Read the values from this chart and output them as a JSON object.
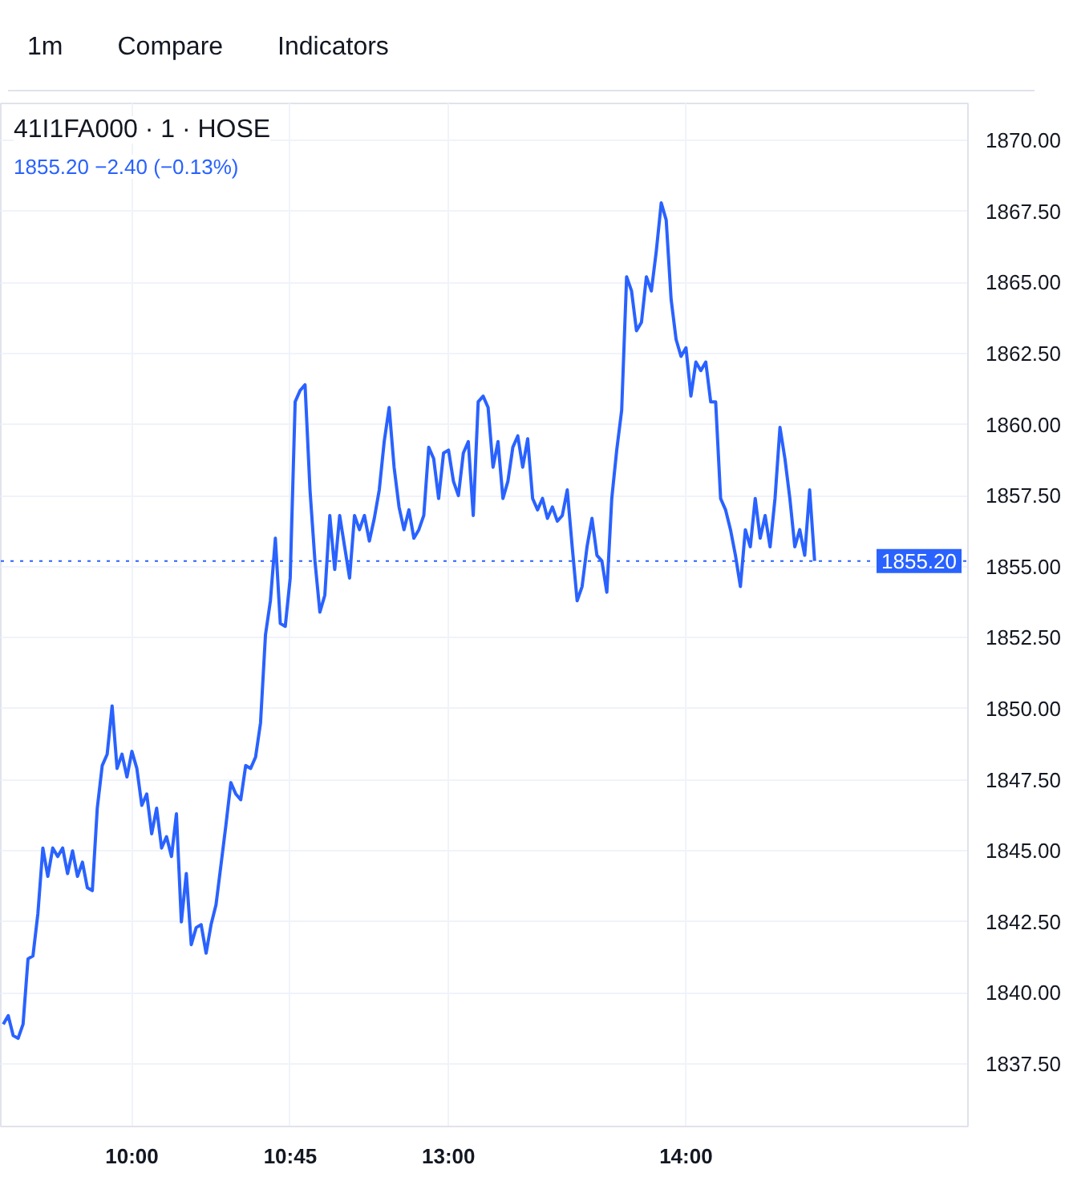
{
  "chart_data": {
    "type": "line",
    "title": "41I1FA000 · 1 · HOSE",
    "subtitle": "1855.20 −2.40 (−0.13%)",
    "annotations": [
      "1m",
      "Compare",
      "Indicators"
    ],
    "categories": [
      null,
      null,
      null,
      null,
      null,
      null,
      null,
      null,
      null,
      null,
      null,
      null,
      null,
      null,
      null,
      null,
      null,
      null,
      null,
      null,
      null,
      null,
      null,
      null,
      null,
      null,
      "10:00",
      null,
      null,
      null,
      null,
      null,
      null,
      null,
      null,
      null,
      null,
      null,
      null,
      null,
      null,
      null,
      null,
      null,
      null,
      null,
      null,
      null,
      null,
      null,
      null,
      null,
      null,
      null,
      null,
      null,
      null,
      null,
      "10:45",
      null,
      null,
      null,
      null,
      null,
      null,
      null,
      null,
      null,
      null,
      null,
      null,
      null,
      null,
      null,
      null,
      null,
      null,
      null,
      null,
      null,
      null,
      null,
      null,
      null,
      null,
      null,
      null,
      null,
      null,
      null,
      "13:00",
      null,
      null,
      null,
      null,
      null,
      null,
      null,
      null,
      null,
      null,
      null,
      null,
      null,
      null,
      null,
      null,
      null,
      null,
      null,
      null,
      null,
      null,
      null,
      null,
      null,
      null,
      null,
      null,
      null,
      null,
      null,
      null,
      null,
      null,
      null,
      null,
      null,
      null,
      null,
      null,
      null,
      null,
      null,
      null,
      null,
      null,
      null,
      "14:00",
      null,
      null,
      null,
      null,
      null,
      null,
      null,
      null,
      null,
      null,
      null,
      null,
      null,
      null,
      null,
      null,
      null,
      null,
      null,
      null,
      null,
      null,
      null,
      null,
      null,
      null
    ],
    "ylim": [
      1835.3,
      1871.3
    ],
    "yticks": [
      {
        "value": 1837.5,
        "label": "1837.50"
      },
      {
        "value": 1840,
        "label": "1840.00"
      },
      {
        "value": 1842.5,
        "label": "1842.50"
      },
      {
        "value": 1845,
        "label": "1845.00"
      },
      {
        "value": 1847.5,
        "label": "1847.50"
      },
      {
        "value": 1850,
        "label": "1850.00"
      },
      {
        "value": 1852.5,
        "label": "1852.50"
      },
      {
        "value": 1855,
        "label": "1855.00"
      },
      {
        "value": 1857.5,
        "label": "1857.50"
      },
      {
        "value": 1860,
        "label": "1860.00"
      },
      {
        "value": 1862.5,
        "label": "1862.50"
      },
      {
        "value": 1865,
        "label": "1865.00"
      },
      {
        "value": 1867.5,
        "label": "1867.50"
      },
      {
        "value": 1870,
        "label": "1870.00"
      }
    ],
    "grid": true,
    "line_style": "solid",
    "ref_lines": [
      {
        "axis": "y",
        "value": 1855.2,
        "label": "1855.20",
        "color": "#2962ff",
        "line_style": "dotted"
      }
    ],
    "series": [
      {
        "color": "#2962ff",
        "values": [
          1838.9,
          1839.2,
          1838.5,
          1838.4,
          1838.9,
          1841.2,
          1841.3,
          1842.8,
          1845.1,
          1844.1,
          1845.1,
          1844.8,
          1845.1,
          1844.2,
          1845.0,
          1844.1,
          1844.6,
          1843.7,
          1843.6,
          1846.5,
          1848.0,
          1848.4,
          1850.1,
          1847.9,
          1848.4,
          1847.6,
          1848.5,
          1847.9,
          1846.6,
          1847.0,
          1845.6,
          1846.5,
          1845.1,
          1845.5,
          1844.8,
          1846.3,
          1842.5,
          1844.2,
          1841.7,
          1842.3,
          1842.4,
          1841.4,
          1842.4,
          1843.1,
          1844.5,
          1845.9,
          1847.4,
          1847.0,
          1846.8,
          1848.0,
          1847.9,
          1848.3,
          1849.5,
          1852.6,
          1853.8,
          1856.0,
          1853.0,
          1852.9,
          1854.6,
          1860.8,
          1861.2,
          1861.4,
          1857.7,
          1855.2,
          1853.4,
          1854.0,
          1856.8,
          1854.9,
          1856.8,
          1855.7,
          1854.6,
          1856.8,
          1856.3,
          1856.8,
          1855.9,
          1856.7,
          1857.7,
          1859.4,
          1860.6,
          1858.5,
          1857.1,
          1856.3,
          1857.0,
          1856.0,
          1856.3,
          1856.8,
          1859.2,
          1858.8,
          1857.4,
          1859.0,
          1859.1,
          1858.0,
          1857.5,
          1859.0,
          1859.4,
          1856.8,
          1860.8,
          1861.0,
          1860.6,
          1858.5,
          1859.4,
          1857.4,
          1858.0,
          1859.2,
          1859.6,
          1858.5,
          1859.5,
          1857.4,
          1857.0,
          1857.4,
          1856.7,
          1857.1,
          1856.6,
          1856.8,
          1857.7,
          1855.7,
          1853.8,
          1854.3,
          1855.7,
          1856.7,
          1855.4,
          1855.2,
          1854.1,
          1857.4,
          1859.1,
          1860.5,
          1865.2,
          1864.7,
          1863.3,
          1863.6,
          1865.2,
          1864.7,
          1866.1,
          1867.8,
          1867.2,
          1864.4,
          1863.0,
          1862.4,
          1862.7,
          1861.0,
          1862.2,
          1861.9,
          1862.2,
          1860.8,
          1860.8,
          1857.4,
          1857.0,
          1856.3,
          1855.4,
          1854.3,
          1856.3,
          1855.7,
          1857.4,
          1856.0,
          1856.8,
          1855.7,
          1857.4,
          1859.9,
          1858.8,
          1857.4,
          1855.7,
          1856.3,
          1855.4,
          1857.7,
          1855.2
        ]
      }
    ]
  }
}
